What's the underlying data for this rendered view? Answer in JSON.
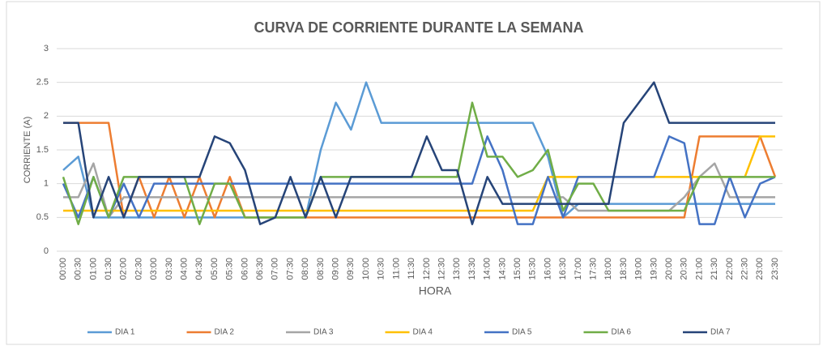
{
  "chart_data": {
    "type": "line",
    "title": "CURVA DE CORRIENTE DURANTE LA SEMANA",
    "x_label": "HORA",
    "y_label": "CORRIENTE (A)",
    "categories": [
      "00:00",
      "00:30",
      "01:00",
      "01:30",
      "02:00",
      "02:30",
      "03:00",
      "03:30",
      "04:00",
      "04:30",
      "05:00",
      "05:30",
      "06:00",
      "06:30",
      "07:00",
      "07:30",
      "08:00",
      "08:30",
      "09:00",
      "09:30",
      "10:00",
      "10:30",
      "11:00",
      "11:30",
      "12:00",
      "12:30",
      "13:00",
      "13:30",
      "14:00",
      "14:30",
      "15:00",
      "15:30",
      "16:00",
      "16:30",
      "17:00",
      "17:30",
      "18:00",
      "18:30",
      "19:00",
      "19:30",
      "20:00",
      "20:30",
      "21:00",
      "21:30",
      "22:00",
      "22:30",
      "23:00",
      "23:30"
    ],
    "ylim": [
      0,
      3
    ],
    "yticks": [
      0,
      0.5,
      1,
      1.5,
      2,
      2.5,
      3
    ],
    "grid": true,
    "legend": "bottom",
    "series": [
      {
        "name": "DIA 1",
        "color": "#5b9bd5",
        "values": [
          1.2,
          1.4,
          0.5,
          0.5,
          0.5,
          0.5,
          0.5,
          0.5,
          0.5,
          0.5,
          0.5,
          0.5,
          0.5,
          0.5,
          0.5,
          0.5,
          0.5,
          1.5,
          2.2,
          1.8,
          2.5,
          1.9,
          1.9,
          1.9,
          1.9,
          1.9,
          1.9,
          1.9,
          1.9,
          1.9,
          1.9,
          1.9,
          1.4,
          0.5,
          0.7,
          0.7,
          0.7,
          0.7,
          0.7,
          0.7,
          0.7,
          0.7,
          0.7,
          0.7,
          0.7,
          0.7,
          0.7,
          0.7
        ]
      },
      {
        "name": "DIA 2",
        "color": "#ed7d31",
        "values": [
          1.9,
          1.9,
          1.9,
          1.9,
          0.5,
          1.1,
          0.5,
          1.1,
          0.5,
          1.1,
          0.5,
          1.1,
          0.5,
          0.5,
          0.5,
          0.5,
          0.5,
          0.5,
          0.5,
          0.5,
          0.5,
          0.5,
          0.5,
          0.5,
          0.5,
          0.5,
          0.5,
          0.5,
          0.5,
          0.5,
          0.5,
          0.5,
          0.5,
          0.5,
          0.5,
          0.5,
          0.5,
          0.5,
          0.5,
          0.5,
          0.5,
          0.5,
          1.7,
          1.7,
          1.7,
          1.7,
          1.7,
          1.1
        ]
      },
      {
        "name": "DIA 3",
        "color": "#a5a5a5",
        "values": [
          0.8,
          0.8,
          1.3,
          0.5,
          0.8,
          0.8,
          0.8,
          0.8,
          0.8,
          0.8,
          0.8,
          0.8,
          0.8,
          0.8,
          0.8,
          0.8,
          0.8,
          0.8,
          0.8,
          0.8,
          0.8,
          0.8,
          0.8,
          0.8,
          0.8,
          0.8,
          0.8,
          0.8,
          0.8,
          0.8,
          0.8,
          0.8,
          0.8,
          0.8,
          0.6,
          0.6,
          0.6,
          0.6,
          0.6,
          0.6,
          0.6,
          0.8,
          1.1,
          1.3,
          0.8,
          0.8,
          0.8,
          0.8
        ]
      },
      {
        "name": "DIA 4",
        "color": "#ffc000",
        "values": [
          0.6,
          0.6,
          0.6,
          0.6,
          0.6,
          0.6,
          0.6,
          0.6,
          0.6,
          0.6,
          0.6,
          0.6,
          0.6,
          0.6,
          0.6,
          0.6,
          0.6,
          0.6,
          0.6,
          0.6,
          0.6,
          0.6,
          0.6,
          0.6,
          0.6,
          0.6,
          0.6,
          0.6,
          0.6,
          0.6,
          0.6,
          0.6,
          1.1,
          1.1,
          1.1,
          1.1,
          1.1,
          1.1,
          1.1,
          1.1,
          1.1,
          1.1,
          1.1,
          1.1,
          1.1,
          1.1,
          1.7,
          1.7
        ]
      },
      {
        "name": "DIA 5",
        "color": "#4472c4",
        "values": [
          1.0,
          0.5,
          1.1,
          0.5,
          1.0,
          0.5,
          1.0,
          1.0,
          1.0,
          1.0,
          1.0,
          1.0,
          1.0,
          1.0,
          1.0,
          1.0,
          1.0,
          1.0,
          1.0,
          1.0,
          1.0,
          1.0,
          1.0,
          1.0,
          1.0,
          1.0,
          1.0,
          1.0,
          1.7,
          1.2,
          0.4,
          0.4,
          1.1,
          0.5,
          1.1,
          1.1,
          1.1,
          1.1,
          1.1,
          1.1,
          1.7,
          1.6,
          0.4,
          0.4,
          1.1,
          0.5,
          1.0,
          1.1
        ]
      },
      {
        "name": "DIA 6",
        "color": "#70ad47",
        "values": [
          1.1,
          0.4,
          1.1,
          0.5,
          1.1,
          1.1,
          1.1,
          1.1,
          1.1,
          0.4,
          1.0,
          1.0,
          0.5,
          0.5,
          0.5,
          0.5,
          0.5,
          1.1,
          1.1,
          1.1,
          1.1,
          1.1,
          1.1,
          1.1,
          1.1,
          1.1,
          1.1,
          2.2,
          1.4,
          1.4,
          1.1,
          1.2,
          1.5,
          0.6,
          1.0,
          1.0,
          0.6,
          0.6,
          0.6,
          0.6,
          0.6,
          0.6,
          1.1,
          1.1,
          1.1,
          1.1,
          1.1,
          1.1
        ]
      },
      {
        "name": "DIA 7",
        "color": "#264478",
        "values": [
          1.9,
          1.9,
          0.5,
          1.1,
          0.5,
          1.1,
          1.1,
          1.1,
          1.1,
          1.1,
          1.7,
          1.6,
          1.2,
          0.4,
          0.5,
          1.1,
          0.5,
          1.1,
          0.5,
          1.1,
          1.1,
          1.1,
          1.1,
          1.1,
          1.7,
          1.2,
          1.2,
          0.4,
          1.1,
          0.7,
          0.7,
          0.7,
          0.7,
          0.7,
          0.7,
          0.7,
          0.7,
          1.9,
          2.2,
          2.5,
          1.9,
          1.9,
          1.9,
          1.9,
          1.9,
          1.9,
          1.9,
          1.9
        ]
      }
    ]
  }
}
